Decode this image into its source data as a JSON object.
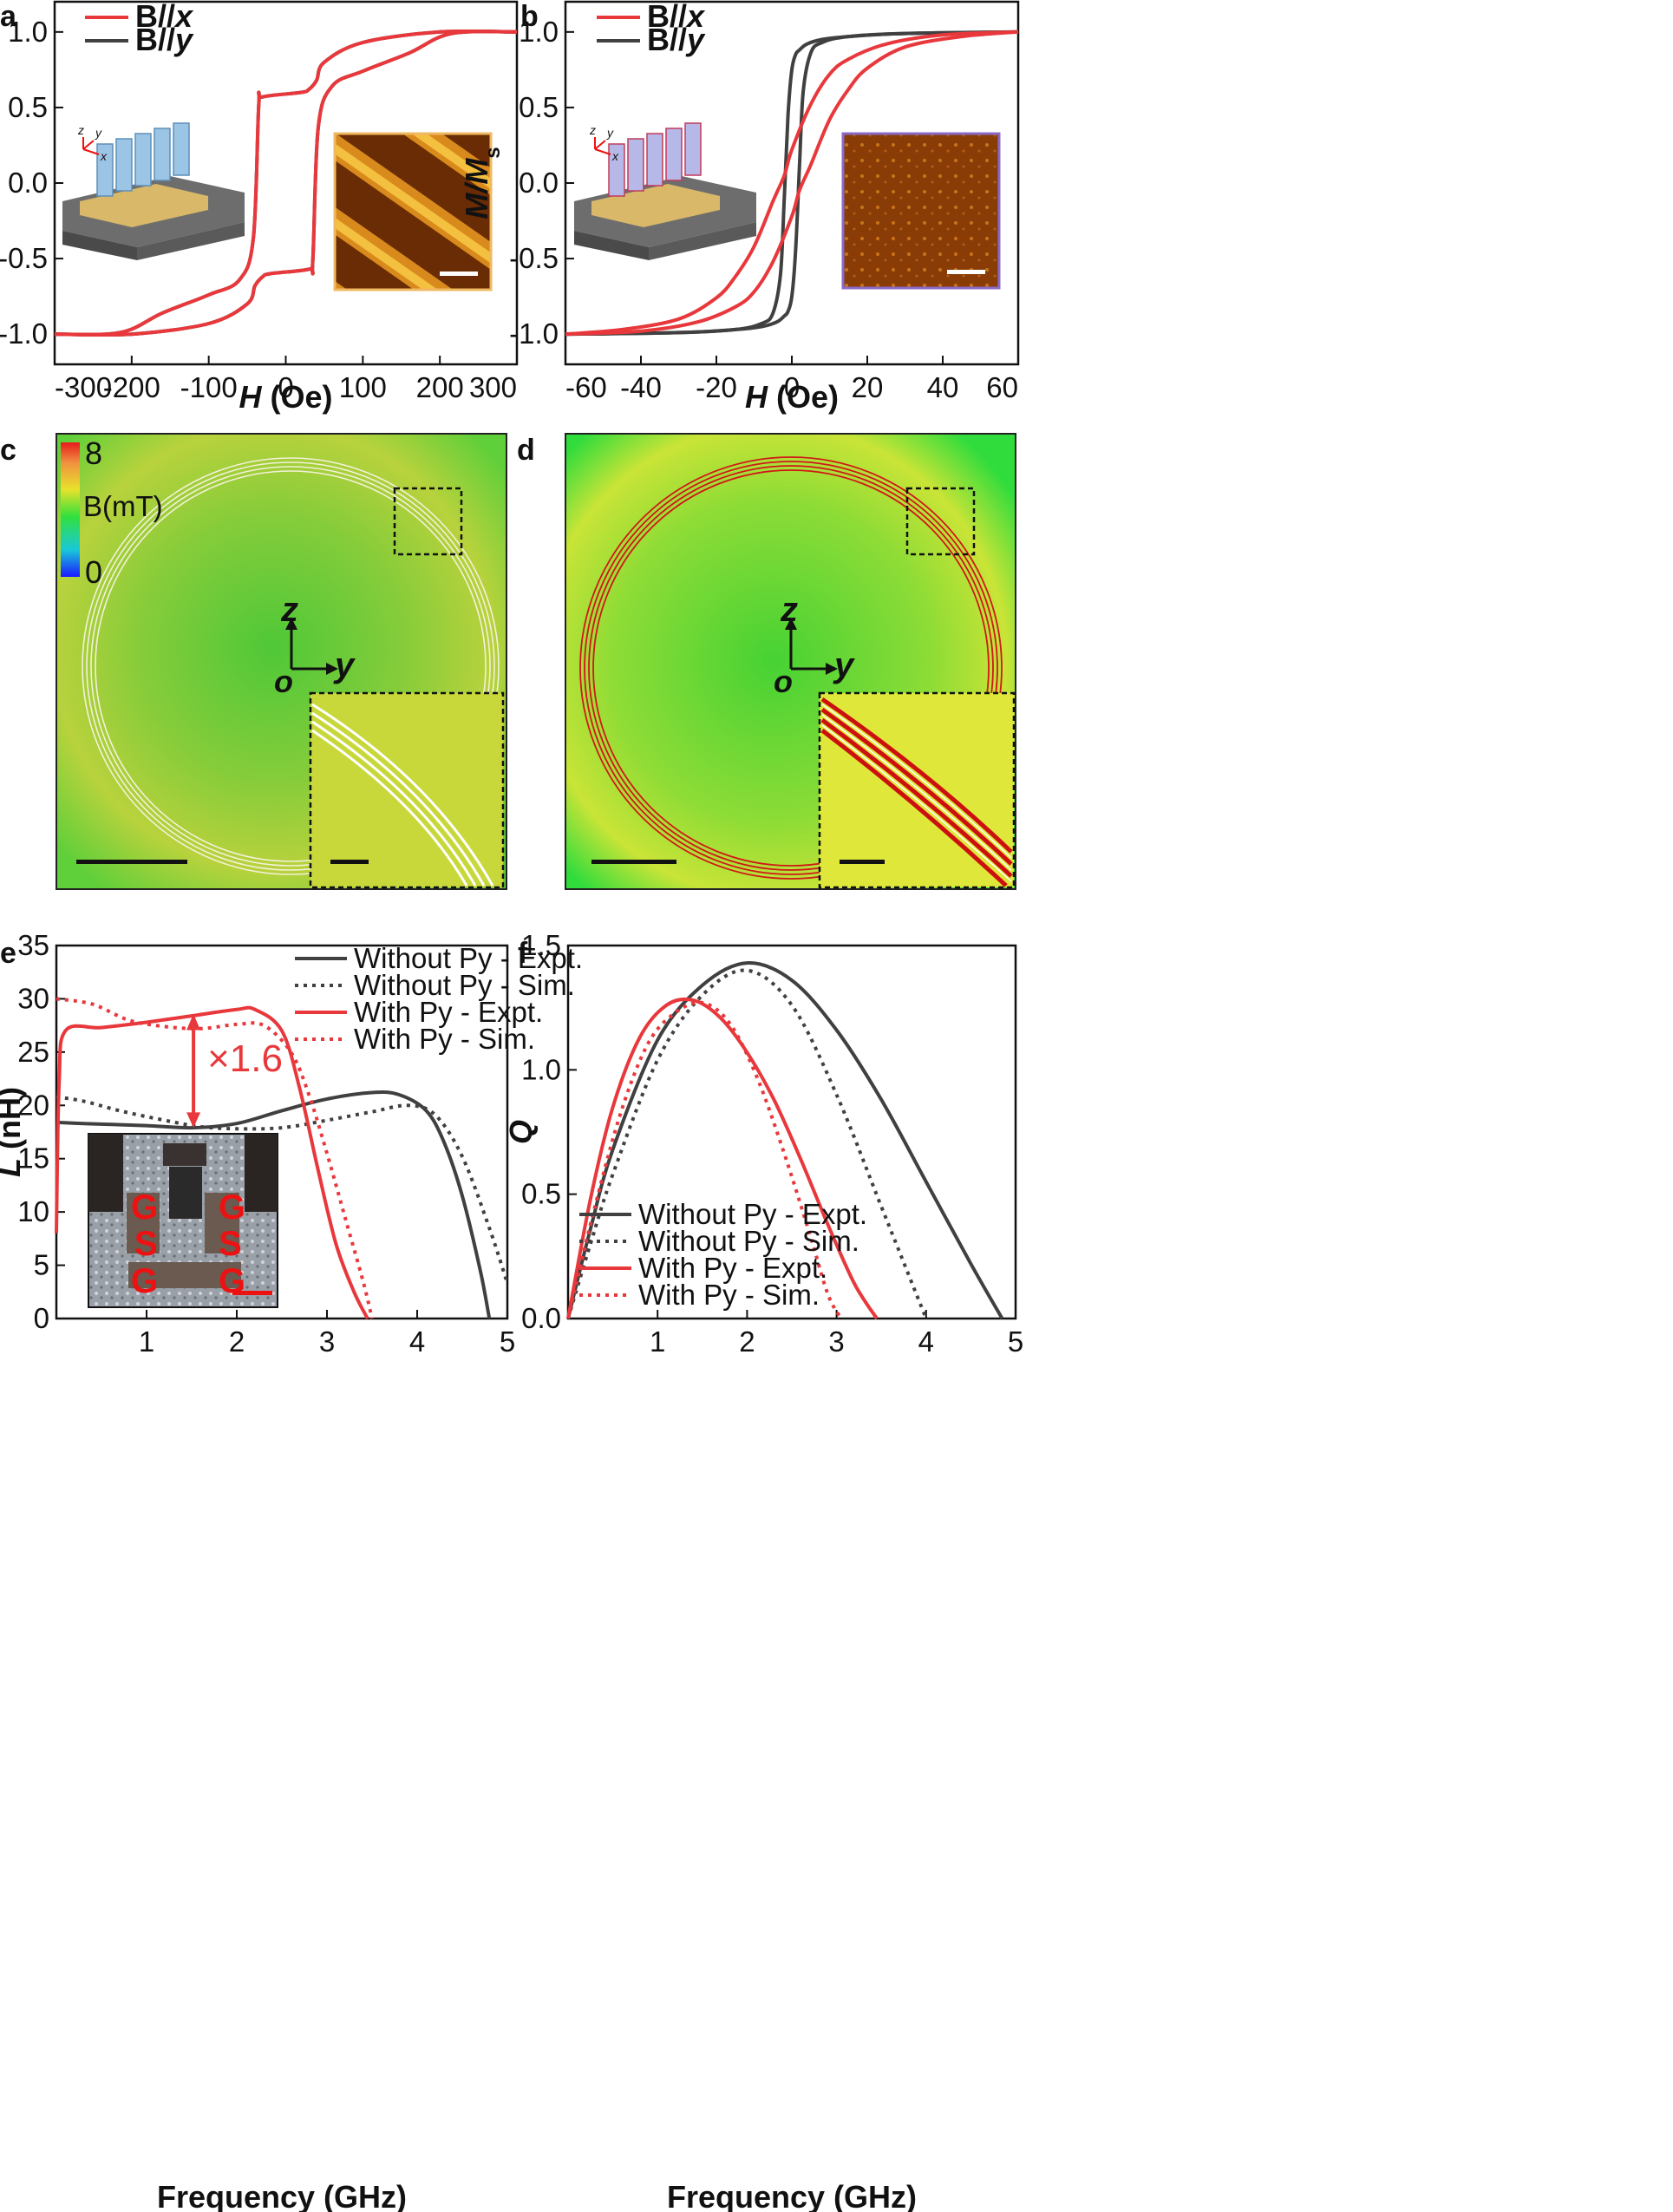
{
  "colors": {
    "red": "#e8383c",
    "dark": "#404040"
  },
  "panels": {
    "a": {
      "letter": "a",
      "chart_data": {
        "type": "line",
        "xlabel_italic": "H",
        "xlabel_rest": " (Oe)",
        "ylabel_main": "M/M",
        "ylabel_sub": "s",
        "xlim": [
          -300,
          300
        ],
        "ylim": [
          -1.2,
          1.2
        ],
        "xticks": [
          "-300",
          "-200",
          "-100",
          "0",
          "100",
          "200",
          "300"
        ],
        "yticks": [
          "-1.0",
          "-0.5",
          "0.0",
          "0.5",
          "1.0"
        ],
        "legend": [
          {
            "prefix": "B//",
            "var": "x",
            "color": "#e8383c"
          },
          {
            "prefix": "B//",
            "var": "y",
            "color": "#404040"
          }
        ],
        "series": [
          {
            "color": "#404040",
            "x": [
              300,
              200,
              100,
              50,
              40,
              30,
              20,
              -30,
              -35,
              -42,
              -60,
              -100,
              -160,
              -215,
              -300
            ],
            "y": [
              1.0,
              1.0,
              0.93,
              0.8,
              0.68,
              0.62,
              0.6,
              0.57,
              0.52,
              -0.36,
              -0.64,
              -0.74,
              -0.86,
              -0.99,
              -1.0
            ]
          },
          {
            "color": "#404040",
            "x": [
              -300,
              -200,
              -100,
              -50,
              -40,
              -30,
              -20,
              30,
              35,
              42,
              60,
              100,
              160,
              215,
              300
            ],
            "y": [
              -1.0,
              -1.0,
              -0.93,
              -0.8,
              -0.68,
              -0.62,
              -0.6,
              -0.57,
              -0.52,
              0.36,
              0.64,
              0.74,
              0.86,
              0.99,
              1.0
            ]
          },
          {
            "color": "#e8383c",
            "x": [
              300,
              200,
              100,
              50,
              40,
              30,
              20,
              -30,
              -35,
              -42,
              -60,
              -100,
              -160,
              -215,
              -300
            ],
            "y": [
              1.0,
              1.0,
              0.93,
              0.8,
              0.68,
              0.62,
              0.6,
              0.57,
              0.52,
              -0.36,
              -0.64,
              -0.74,
              -0.86,
              -0.99,
              -1.0
            ]
          },
          {
            "color": "#e8383c",
            "x": [
              -300,
              -200,
              -100,
              -50,
              -40,
              -30,
              -20,
              30,
              35,
              42,
              60,
              100,
              160,
              215,
              300
            ],
            "y": [
              -1.0,
              -1.0,
              -0.93,
              -0.8,
              -0.68,
              -0.62,
              -0.6,
              -0.57,
              -0.52,
              0.36,
              0.64,
              0.74,
              0.86,
              0.99,
              1.0
            ]
          }
        ]
      }
    },
    "b": {
      "letter": "b",
      "chart_data": {
        "type": "line",
        "xlabel_italic": "H",
        "xlabel_rest": " (Oe)",
        "ylabel_main": "M/M",
        "ylabel_sub": "s",
        "xlim": [
          -60,
          60
        ],
        "ylim": [
          -1.2,
          1.2
        ],
        "xticks": [
          "-60",
          "-40",
          "-20",
          "0",
          "20",
          "40",
          "60"
        ],
        "yticks": [
          "-1.0",
          "-0.5",
          "0.0",
          "0.5",
          "1.0"
        ],
        "legend": [
          {
            "prefix": "B//",
            "var": "x",
            "color": "#e8383c"
          },
          {
            "prefix": "B//",
            "var": "y",
            "color": "#404040"
          }
        ],
        "series": [
          {
            "color": "#404040",
            "x": [
              -60,
              -30,
              -15,
              -8,
              -5,
              -3,
              -2,
              -1,
              0,
              1,
              2,
              4,
              8,
              15,
              30,
              60
            ],
            "y": [
              -1.0,
              -0.99,
              -0.97,
              -0.93,
              -0.86,
              -0.6,
              -0.1,
              0.45,
              0.75,
              0.85,
              0.88,
              0.92,
              0.95,
              0.97,
              0.99,
              1.0
            ]
          },
          {
            "color": "#404040",
            "x": [
              60,
              30,
              15,
              8,
              5,
              3,
              2,
              1,
              0,
              -1,
              -2,
              -4,
              -8,
              -15,
              -30,
              -60
            ],
            "y": [
              1.0,
              0.99,
              0.97,
              0.93,
              0.86,
              0.6,
              0.1,
              -0.45,
              -0.75,
              -0.85,
              -0.88,
              -0.92,
              -0.95,
              -0.97,
              -0.99,
              -1.0
            ]
          },
          {
            "color": "#e8383c",
            "x": [
              -60,
              -40,
              -25,
              -15,
              -10,
              -5,
              0,
              2,
              5,
              10,
              15,
              20,
              30,
              45,
              60
            ],
            "y": [
              -1.0,
              -0.98,
              -0.92,
              -0.82,
              -0.72,
              -0.52,
              -0.22,
              -0.05,
              0.12,
              0.42,
              0.62,
              0.76,
              0.9,
              0.97,
              1.0
            ]
          },
          {
            "color": "#e8383c",
            "x": [
              60,
              40,
              25,
              15,
              10,
              5,
              0,
              -2,
              -5,
              -10,
              -15,
              -20,
              -30,
              -45,
              -60
            ],
            "y": [
              1.0,
              0.98,
              0.92,
              0.82,
              0.72,
              0.52,
              0.22,
              0.05,
              -0.12,
              -0.42,
              -0.62,
              -0.76,
              -0.9,
              -0.97,
              -1.0
            ]
          }
        ]
      }
    },
    "c": {
      "letter": "c",
      "colorbar_max": "8",
      "colorbar_label": "B(mT)",
      "colorbar_min": "0",
      "axis_z": "z",
      "axis_y": "y",
      "axis_o": "o"
    },
    "d": {
      "letter": "d",
      "axis_z": "z",
      "axis_y": "y",
      "axis_o": "o"
    },
    "e": {
      "letter": "e",
      "annotation": "×1.6",
      "inset_labels": [
        "G",
        "G",
        "S",
        "S",
        "G",
        "G"
      ],
      "chart_data": {
        "type": "line",
        "xlabel": "Frequency (GHz)",
        "ylabel_italic": "L",
        "ylabel_rest": " (nH)",
        "xlim": [
          0,
          5
        ],
        "ylim": [
          0,
          35
        ],
        "xticks": [
          "1",
          "2",
          "3",
          "4",
          "5"
        ],
        "yticks": [
          "0",
          "5",
          "10",
          "15",
          "20",
          "25",
          "30",
          "35"
        ],
        "series": [
          {
            "name": "Without Py - Expt.",
            "color": "#404040",
            "dash": false,
            "x": [
              0.0,
              0.3,
              1.0,
              1.5,
              2.0,
              2.5,
              3.0,
              3.5,
              3.8,
              4.1,
              4.3,
              4.5,
              4.7,
              4.8
            ],
            "y": [
              18.4,
              18.3,
              18.1,
              17.9,
              18.3,
              19.5,
              20.6,
              21.2,
              21.0,
              19.5,
              16.5,
              11.5,
              4.5,
              0
            ]
          },
          {
            "name": "Without Py - Sim.",
            "color": "#404040",
            "dash": true,
            "x": [
              0.0,
              0.3,
              0.7,
              1.2,
              1.6,
              2.0,
              2.5,
              3.0,
              3.5,
              3.9,
              4.2,
              4.5,
              4.8,
              5.0
            ],
            "y": [
              20.8,
              20.4,
              19.5,
              18.6,
              18.0,
              17.8,
              17.9,
              18.6,
              19.4,
              20.0,
              19.1,
              15.2,
              8.5,
              3.3
            ]
          },
          {
            "name": "With Py - Expt.",
            "color": "#e8383c",
            "dash": false,
            "x": [
              0.0,
              0.03,
              0.1,
              0.5,
              1.0,
              1.5,
              2.0,
              2.2,
              2.5,
              2.7,
              2.9,
              3.1,
              3.3,
              3.45
            ],
            "y": [
              8.0,
              22.0,
              27.0,
              27.3,
              27.8,
              28.4,
              29.0,
              29.0,
              27.0,
              21.5,
              14.0,
              7.0,
              2.5,
              0
            ]
          },
          {
            "name": "With Py - Sim.",
            "color": "#e8383c",
            "dash": true,
            "x": [
              0.0,
              0.4,
              0.8,
              1.2,
              1.6,
              2.0,
              2.3,
              2.6,
              2.8,
              3.0,
              3.2,
              3.4,
              3.5
            ],
            "y": [
              30.0,
              29.5,
              28.0,
              27.4,
              27.2,
              27.6,
              27.5,
              25.0,
              21.0,
              15.5,
              9.5,
              3.5,
              0
            ]
          }
        ]
      }
    },
    "f": {
      "letter": "f",
      "chart_data": {
        "type": "line",
        "xlabel": "Frequency (GHz)",
        "ylabel_italic": "Q",
        "xlim": [
          0,
          5
        ],
        "ylim": [
          0,
          1.5
        ],
        "xticks": [
          "1",
          "2",
          "3",
          "4",
          "5"
        ],
        "yticks": [
          "0.0",
          "0.5",
          "1.0",
          "1.5"
        ],
        "series": [
          {
            "name": "Without Py - Expt.",
            "color": "#404040",
            "dash": false,
            "x": [
              0.0,
              0.25,
              0.5,
              1.0,
              1.5,
              2.0,
              2.5,
              3.0,
              3.5,
              4.0,
              4.5,
              4.85
            ],
            "y": [
              0.0,
              0.36,
              0.68,
              1.12,
              1.34,
              1.43,
              1.36,
              1.16,
              0.88,
              0.55,
              0.22,
              0.0
            ]
          },
          {
            "name": "Without Py - Sim.",
            "color": "#404040",
            "dash": true,
            "x": [
              0.0,
              0.25,
              0.5,
              1.0,
              1.5,
              2.0,
              2.5,
              3.0,
              3.5,
              3.8,
              4.0
            ],
            "y": [
              0.0,
              0.3,
              0.58,
              1.04,
              1.3,
              1.4,
              1.26,
              0.9,
              0.45,
              0.18,
              0.0
            ]
          },
          {
            "name": "With Py - Expt.",
            "color": "#e8383c",
            "dash": false,
            "x": [
              0.0,
              0.25,
              0.5,
              0.8,
              1.1,
              1.4,
              1.7,
              2.0,
              2.3,
              2.6,
              2.9,
              3.2,
              3.45
            ],
            "y": [
              0.0,
              0.48,
              0.85,
              1.13,
              1.26,
              1.28,
              1.21,
              1.07,
              0.88,
              0.64,
              0.38,
              0.14,
              0.0
            ]
          },
          {
            "name": "With Py - Sim.",
            "color": "#e8383c",
            "dash": true,
            "x": [
              0.0,
              0.3,
              0.6,
              0.9,
              1.2,
              1.5,
              1.8,
              2.1,
              2.4,
              2.7,
              2.9,
              3.05
            ],
            "y": [
              0.0,
              0.45,
              0.84,
              1.11,
              1.23,
              1.27,
              1.19,
              0.98,
              0.68,
              0.34,
              0.1,
              0.0
            ]
          }
        ]
      }
    }
  }
}
